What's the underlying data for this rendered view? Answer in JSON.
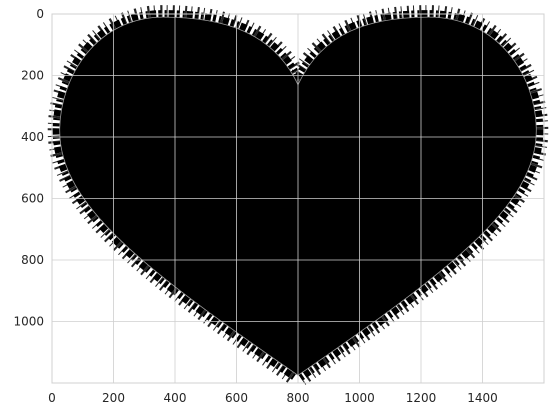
{
  "chart_data": {
    "type": "heatmap",
    "title": "",
    "xlabel": "",
    "ylabel": "",
    "xlim": [
      0,
      1600
    ],
    "ylim": [
      1200,
      0
    ],
    "y_inverted": true,
    "grid": true,
    "x_ticks": [
      0,
      200,
      400,
      600,
      800,
      1000,
      1200,
      1400
    ],
    "x_tick_labels": [
      "0",
      "200",
      "400",
      "600",
      "800",
      "1000",
      "1200",
      "1400"
    ],
    "y_ticks": [
      0,
      200,
      400,
      600,
      800,
      1000
    ],
    "y_tick_labels": [
      "0",
      "200",
      "400",
      "600",
      "800",
      "1000"
    ],
    "image_content": "black heart shape on white background",
    "colors": {
      "shape": "#000000",
      "background": "#ffffff",
      "grid": "#cfcfcf",
      "outline": "#9a9a9a"
    },
    "heart_outline": {
      "top_notch": [
        800,
        230
      ],
      "bottom_tip": [
        800,
        1175
      ],
      "left_lobe_top": [
        360,
        10
      ],
      "right_lobe_top": [
        1225,
        10
      ],
      "left_extreme": [
        25,
        380
      ],
      "right_extreme": [
        1575,
        380
      ]
    }
  }
}
